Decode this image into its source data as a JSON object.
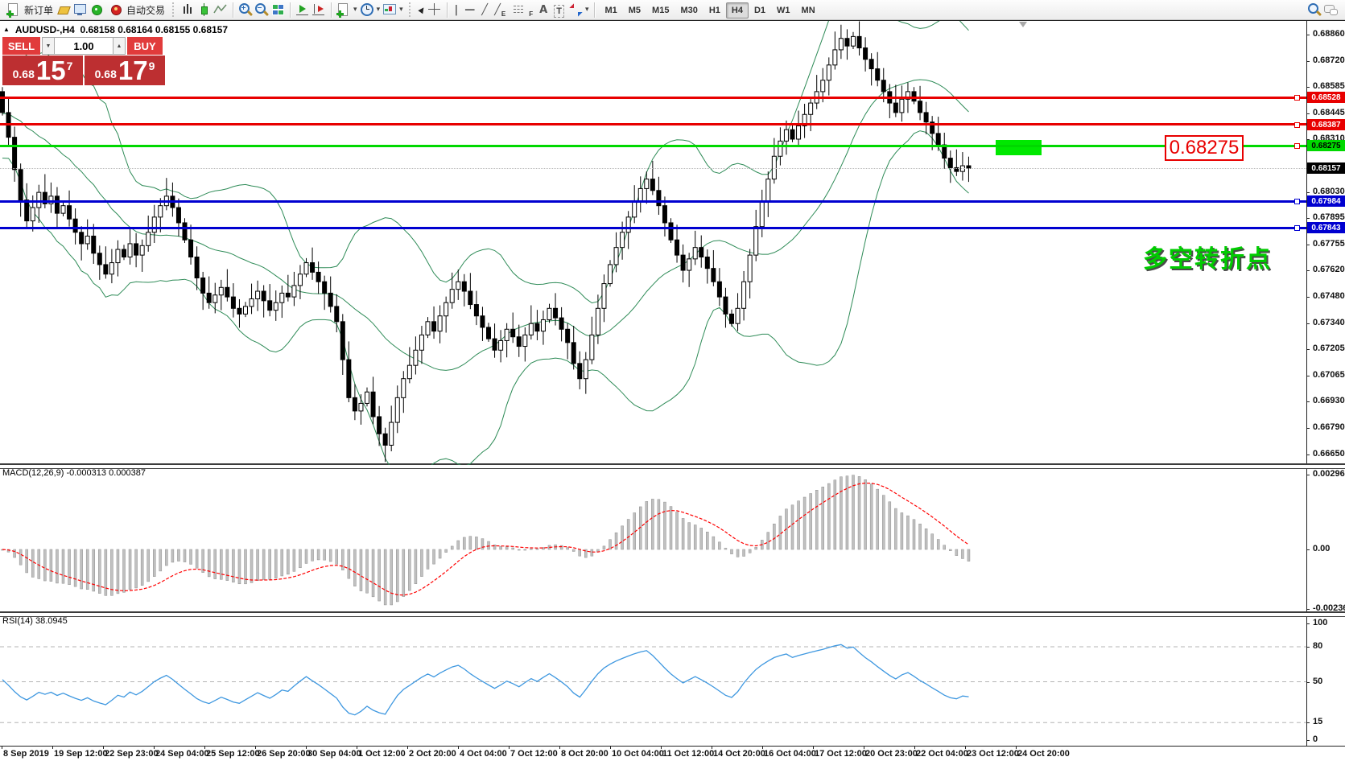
{
  "toolbar": {
    "new_order": {
      "label": "新订单"
    },
    "autotrading": {
      "label": "自动交易"
    },
    "glyphs": {
      "caret": "▾",
      "collapse": "▲",
      "down": "▼",
      "up": "▲",
      "vline": "|",
      "hline": "—",
      "trend": "╱",
      "channel": "╱",
      "channel_sub": "E",
      "fibo_sub": "F",
      "text": "A",
      "text_label": "T",
      "cursor": "►"
    },
    "timeframes": [
      "M1",
      "M5",
      "M15",
      "M30",
      "H1",
      "H4",
      "D1",
      "W1",
      "MN"
    ],
    "active_timeframe": "H4"
  },
  "trade_panel": {
    "collapse_glyph": "▲",
    "title_symbol": "AUDUSD-,H4",
    "title_ohlc": "0.68158 0.68164 0.68155 0.68157",
    "sell_label": "SELL",
    "buy_label": "BUY",
    "volume": "1.00",
    "sell_small": "0.68",
    "sell_big": "15",
    "sell_sup": "7",
    "buy_small": "0.68",
    "buy_big": "17",
    "buy_sup": "9"
  },
  "annotations": {
    "price_box_label": "0.68275",
    "turning_point_text": "多空转折点"
  },
  "panes": {
    "macd_label": "MACD(12,26,9) -0.000313 0.000387",
    "rsi_label": "RSI(14) 38.0945"
  },
  "chart_data": {
    "type": "candlestick",
    "symbol": "AUDUSD-",
    "timeframe": "H4",
    "ohlc": {
      "open": 0.68158,
      "high": 0.68164,
      "low": 0.68155,
      "close": 0.68157
    },
    "price_axis": {
      "range_top": 0.68932,
      "range_bottom": 0.66596,
      "ticks": [
        0.6886,
        0.6872,
        0.68585,
        0.68445,
        0.6831,
        0.6803,
        0.67895,
        0.67755,
        0.6762,
        0.6748,
        0.6734,
        0.67205,
        0.67065,
        0.6693,
        0.6679,
        0.6665
      ]
    },
    "hlines": [
      {
        "price": 0.68528,
        "color": "#e80000",
        "tag": "0.68528",
        "thickness": 3
      },
      {
        "price": 0.68387,
        "color": "#e80000",
        "tag": "0.68387",
        "thickness": 3
      },
      {
        "price": 0.68275,
        "color": "#00d800",
        "tag": "0.68275",
        "thickness": 3,
        "tag_text": "#000000"
      },
      {
        "price": 0.68157,
        "color": "#b8b8b8",
        "tag": "0.68157",
        "thickness": 1,
        "style": "dotted",
        "tag_bg": "#000000"
      },
      {
        "price": 0.67984,
        "color": "#0000d0",
        "tag": "0.67984",
        "thickness": 3
      },
      {
        "price": 0.67843,
        "color": "#0000d0",
        "tag": "0.67843",
        "thickness": 3
      }
    ],
    "series": {
      "first_open": 0.6856,
      "closes": [
        0.6845,
        0.6832,
        0.6815,
        0.6799,
        0.6788,
        0.6795,
        0.6803,
        0.6797,
        0.6801,
        0.6792,
        0.6796,
        0.6789,
        0.6782,
        0.6776,
        0.678,
        0.6771,
        0.6765,
        0.676,
        0.6766,
        0.6773,
        0.6769,
        0.6776,
        0.677,
        0.6775,
        0.6782,
        0.679,
        0.6796,
        0.6801,
        0.6795,
        0.6787,
        0.6778,
        0.6769,
        0.6758,
        0.675,
        0.6745,
        0.6749,
        0.6753,
        0.6748,
        0.6742,
        0.6739,
        0.6743,
        0.6747,
        0.6751,
        0.6746,
        0.6741,
        0.6745,
        0.675,
        0.6748,
        0.6754,
        0.676,
        0.6766,
        0.6761,
        0.6756,
        0.675,
        0.6743,
        0.6735,
        0.6715,
        0.6695,
        0.6688,
        0.6692,
        0.6698,
        0.6685,
        0.6676,
        0.667,
        0.6682,
        0.6695,
        0.6705,
        0.6712,
        0.672,
        0.6728,
        0.6735,
        0.673,
        0.6738,
        0.6745,
        0.6752,
        0.6756,
        0.6751,
        0.6744,
        0.6738,
        0.6732,
        0.6726,
        0.672,
        0.6725,
        0.6731,
        0.6727,
        0.6722,
        0.6728,
        0.6734,
        0.673,
        0.6736,
        0.6742,
        0.6737,
        0.6731,
        0.6724,
        0.6713,
        0.6705,
        0.6715,
        0.6728,
        0.6742,
        0.6755,
        0.6765,
        0.6774,
        0.6782,
        0.679,
        0.6798,
        0.6805,
        0.681,
        0.6804,
        0.6796,
        0.6787,
        0.6778,
        0.677,
        0.6762,
        0.6768,
        0.6774,
        0.6769,
        0.6763,
        0.6756,
        0.6748,
        0.6739,
        0.6734,
        0.6742,
        0.6756,
        0.677,
        0.6785,
        0.6798,
        0.681,
        0.6822,
        0.683,
        0.6836,
        0.6831,
        0.6838,
        0.6844,
        0.685,
        0.6856,
        0.6862,
        0.687,
        0.6878,
        0.6884,
        0.688,
        0.6885,
        0.6879,
        0.6873,
        0.6868,
        0.6862,
        0.6856,
        0.685,
        0.6845,
        0.6852,
        0.6856,
        0.6851,
        0.6845,
        0.684,
        0.6834,
        0.6828,
        0.6821,
        0.6816,
        0.6814,
        0.6817,
        0.68157
      ]
    },
    "indicators": {
      "bollinger": {
        "period": 20,
        "deviation": 2,
        "color": "#2e8b57"
      },
      "macd": {
        "fast": 12,
        "slow": 26,
        "signal": 9,
        "value": -0.000313,
        "signal_value": 0.000387,
        "axis_ticks": [
          "0.002965",
          "0.00",
          "-0.002361"
        ],
        "hist_color": "#c0c0c0",
        "signal_color": "#ff0000"
      },
      "rsi": {
        "period": 14,
        "value": 38.0945,
        "levels": [
          100,
          80,
          50,
          15,
          0
        ],
        "dashed_levels": [
          80,
          50,
          15
        ],
        "color": "#3f98e0"
      }
    },
    "time_axis": [
      "8 Sep 2019",
      "19 Sep 12:00",
      "22 Sep 23:00",
      "24 Sep 04:00",
      "25 Sep 12:00",
      "26 Sep 20:00",
      "30 Sep 04:00",
      "1 Oct 12:00",
      "2 Oct 20:00",
      "4 Oct 04:00",
      "7 Oct 12:00",
      "8 Oct 20:00",
      "10 Oct 04:00",
      "11 Oct 12:00",
      "14 Oct 20:00",
      "16 Oct 04:00",
      "17 Oct 12:00",
      "20 Oct 23:00",
      "22 Oct 04:00",
      "23 Oct 12:00",
      "24 Oct 20:00"
    ]
  }
}
